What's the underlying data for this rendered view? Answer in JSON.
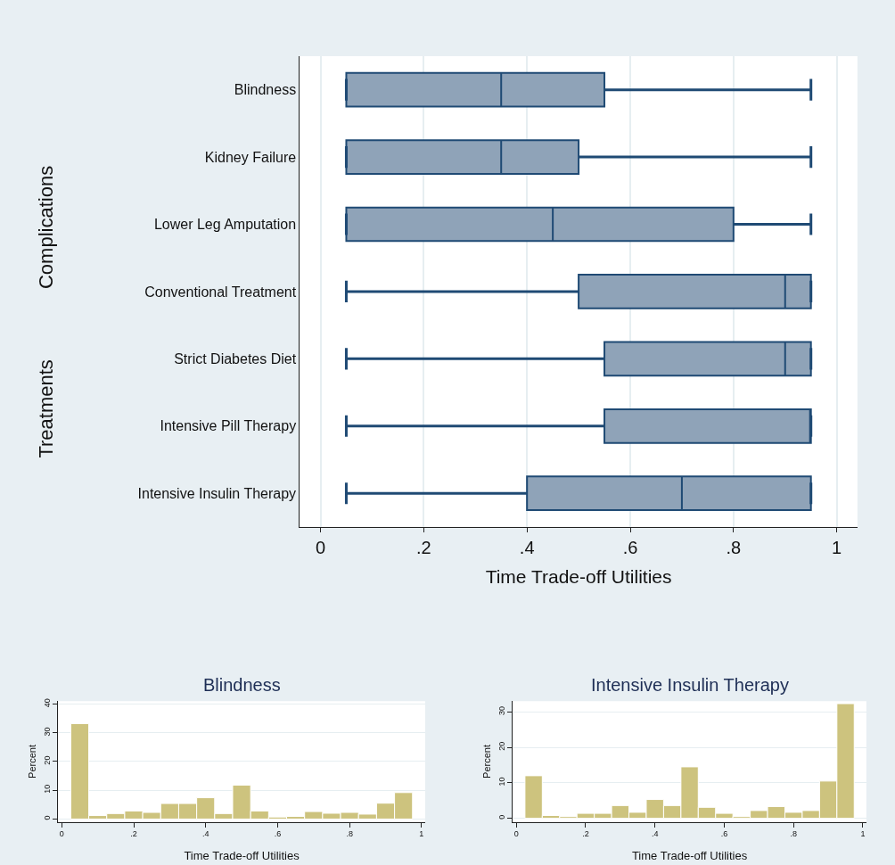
{
  "chart_data": [
    {
      "type": "box",
      "orientation": "horizontal",
      "xlabel": "Time Trade-off Utilities",
      "annotations": [
        "Complications",
        "Treatments"
      ],
      "categories": [
        "Blindness",
        "Kidney Failure",
        "Lower Leg Amputation",
        "Conventional Treatment",
        "Strict Diabetes Diet",
        "Intensive Pill Therapy",
        "Intensive Insulin Therapy"
      ],
      "series": [
        {
          "color": "#8fa3b8",
          "boxes": [
            {
              "low": 0.05,
              "q1": 0.05,
              "median": 0.35,
              "q3": 0.55,
              "high": 0.95
            },
            {
              "low": 0.05,
              "q1": 0.05,
              "median": 0.35,
              "q3": 0.5,
              "high": 0.95
            },
            {
              "low": 0.05,
              "q1": 0.05,
              "median": 0.45,
              "q3": 0.8,
              "high": 0.95
            },
            {
              "low": 0.05,
              "q1": 0.5,
              "median": 0.9,
              "q3": 0.95,
              "high": 0.95
            },
            {
              "low": 0.05,
              "q1": 0.55,
              "median": 0.9,
              "q3": 0.95,
              "high": 0.95
            },
            {
              "low": 0.05,
              "q1": 0.55,
              "median": 0.95,
              "q3": 0.95,
              "high": 0.95
            },
            {
              "low": 0.05,
              "q1": 0.4,
              "median": 0.7,
              "q3": 0.95,
              "high": 0.95
            }
          ]
        }
      ],
      "xlim": [
        -0.04,
        1.04
      ],
      "xticks": [
        0,
        {
          "value": 0.2,
          "label": ".2"
        },
        {
          "value": 0.4,
          "label": ".4"
        },
        {
          "value": 0.6,
          "label": ".6"
        },
        {
          "value": 0.8,
          "label": ".8"
        },
        1
      ],
      "grid": "x"
    },
    {
      "type": "histogram",
      "title": "Blindness",
      "xlabel": "Time Trade-off Utilities",
      "ylabel": "Percent",
      "color": "#cdc37e",
      "bins": [
        0.025,
        0.075,
        0.125,
        0.175,
        0.225,
        0.275,
        0.325,
        0.375,
        0.425,
        0.475,
        0.525,
        0.575,
        0.625,
        0.675,
        0.725,
        0.775,
        0.825,
        0.875,
        0.925,
        0.975
      ],
      "values": [
        33.2,
        1.2,
        1.9,
        2.8,
        2.3,
        5.4,
        5.4,
        7.4,
        1.9,
        11.8,
        2.8,
        0.7,
        0.9,
        2.6,
        2.0,
        2.3,
        1.7,
        5.5,
        9.2
      ],
      "xlim": [
        -0.01,
        1.01
      ],
      "xticks": [
        0,
        {
          "value": 0.2,
          "label": ".2"
        },
        {
          "value": 0.4,
          "label": ".4"
        },
        {
          "value": 0.6,
          "label": ".6"
        },
        {
          "value": 0.8,
          "label": ".8"
        },
        1
      ],
      "ylim": [
        -1,
        41
      ],
      "yticks": [
        0,
        10,
        20,
        30,
        40
      ],
      "grid": "y"
    },
    {
      "type": "histogram",
      "title": "Intensive Insulin Therapy",
      "xlabel": "Time Trade-off Utilities",
      "ylabel": "Percent",
      "color": "#cdc37e",
      "bins": [
        0.025,
        0.075,
        0.125,
        0.175,
        0.225,
        0.275,
        0.325,
        0.375,
        0.425,
        0.475,
        0.525,
        0.575,
        0.625,
        0.675,
        0.725,
        0.775,
        0.825,
        0.875,
        0.925,
        0.975
      ],
      "values": [
        12.0,
        0.8,
        0.5,
        1.4,
        1.4,
        3.6,
        1.7,
        5.3,
        3.6,
        14.5,
        3.1,
        1.4,
        0.5,
        2.2,
        3.3,
        1.7,
        2.2,
        10.5,
        32.3
      ],
      "xlim": [
        -0.01,
        1.01
      ],
      "xticks": [
        0,
        {
          "value": 0.2,
          "label": ".2"
        },
        {
          "value": 0.4,
          "label": ".4"
        },
        {
          "value": 0.6,
          "label": ".6"
        },
        {
          "value": 0.8,
          "label": ".8"
        },
        1
      ],
      "ylim": [
        -1,
        33
      ],
      "yticks": [
        0,
        10,
        20,
        30
      ],
      "grid": "y"
    }
  ]
}
